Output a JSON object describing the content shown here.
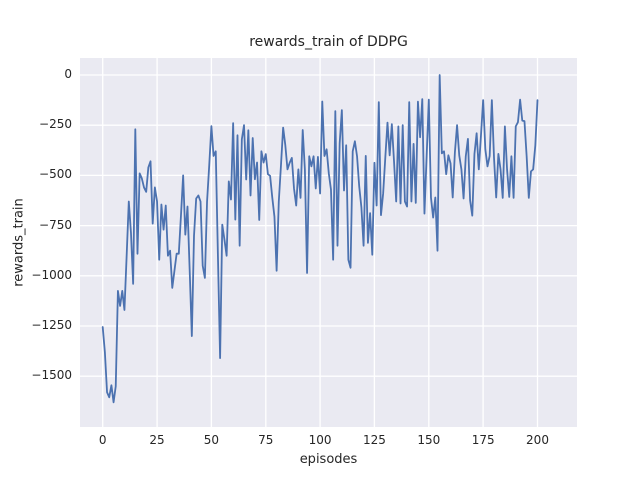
{
  "figure": {
    "background": "#ffffff",
    "title": "rewards_train of DDPG"
  },
  "style": {
    "plot_background": "#eaeaf2",
    "grid_color": "#ffffff",
    "text_color": "#262626",
    "line_color": "#4c72b0"
  },
  "chart_data": {
    "type": "line",
    "title": "rewards_train of DDPG",
    "xlabel": "episodes",
    "ylabel": "rewards_train",
    "legend": false,
    "grid": true,
    "x_ticks": [
      0,
      25,
      50,
      75,
      100,
      125,
      150,
      175,
      200
    ],
    "x_tick_labels": [
      "0",
      "25",
      "50",
      "75",
      "100",
      "125",
      "150",
      "175",
      "200"
    ],
    "y_ticks": [
      0,
      -250,
      -500,
      -750,
      -1000,
      -1250,
      -1500
    ],
    "y_tick_labels": [
      "0",
      "−250",
      "−500",
      "−750",
      "−1000",
      "−1250",
      "−1500"
    ],
    "xlim": [
      -10.5,
      218.2
    ],
    "ylim": [
      -1755,
      85
    ],
    "x_note": "episode index, one point per episode from 0 to 200",
    "series": [
      {
        "name": "rewards_train",
        "color": "#4c72b0",
        "x_start": 0,
        "x_step": 1,
        "values": [
          -1255,
          -1380,
          -1580,
          -1605,
          -1545,
          -1630,
          -1550,
          -1075,
          -1150,
          -1075,
          -1170,
          -905,
          -630,
          -785,
          -1040,
          -270,
          -890,
          -490,
          -515,
          -560,
          -582,
          -460,
          -430,
          -740,
          -560,
          -630,
          -920,
          -645,
          -770,
          -650,
          -900,
          -875,
          -1060,
          -975,
          -890,
          -890,
          -700,
          -500,
          -795,
          -655,
          -970,
          -1300,
          -800,
          -615,
          -600,
          -630,
          -950,
          -1010,
          -630,
          -450,
          -255,
          -403,
          -380,
          -900,
          -1410,
          -745,
          -820,
          -900,
          -530,
          -620,
          -240,
          -720,
          -300,
          -850,
          -320,
          -250,
          -520,
          -275,
          -600,
          -314,
          -519,
          -436,
          -722,
          -380,
          -436,
          -394,
          -494,
          -502,
          -610,
          -706,
          -975,
          -630,
          -450,
          -262,
          -350,
          -470,
          -437,
          -413,
          -565,
          -650,
          -470,
          -612,
          -274,
          -470,
          -986,
          -405,
          -455,
          -405,
          -565,
          -408,
          -590,
          -132,
          -403,
          -370,
          -490,
          -570,
          -920,
          -180,
          -850,
          -340,
          -175,
          -575,
          -350,
          -920,
          -960,
          -380,
          -330,
          -405,
          -556,
          -660,
          -850,
          -403,
          -836,
          -688,
          -895,
          -437,
          -650,
          -135,
          -698,
          -590,
          -410,
          -237,
          -400,
          -245,
          -430,
          -630,
          -256,
          -640,
          -250,
          -630,
          -655,
          -135,
          -630,
          -343,
          -637,
          -133,
          -310,
          -120,
          -690,
          -405,
          -123,
          -610,
          -710,
          -610,
          -875,
          0,
          -390,
          -380,
          -494,
          -400,
          -440,
          -610,
          -385,
          -250,
          -400,
          -470,
          -615,
          -405,
          -318,
          -625,
          -700,
          -393,
          -290,
          -470,
          -300,
          -125,
          -370,
          -455,
          -403,
          -125,
          -413,
          -610,
          -393,
          -470,
          -612,
          -256,
          -470,
          -607,
          -405,
          -612,
          -256,
          -235,
          -123,
          -227,
          -230,
          -403,
          -612,
          -480,
          -470,
          -350,
          -125
        ]
      }
    ]
  }
}
